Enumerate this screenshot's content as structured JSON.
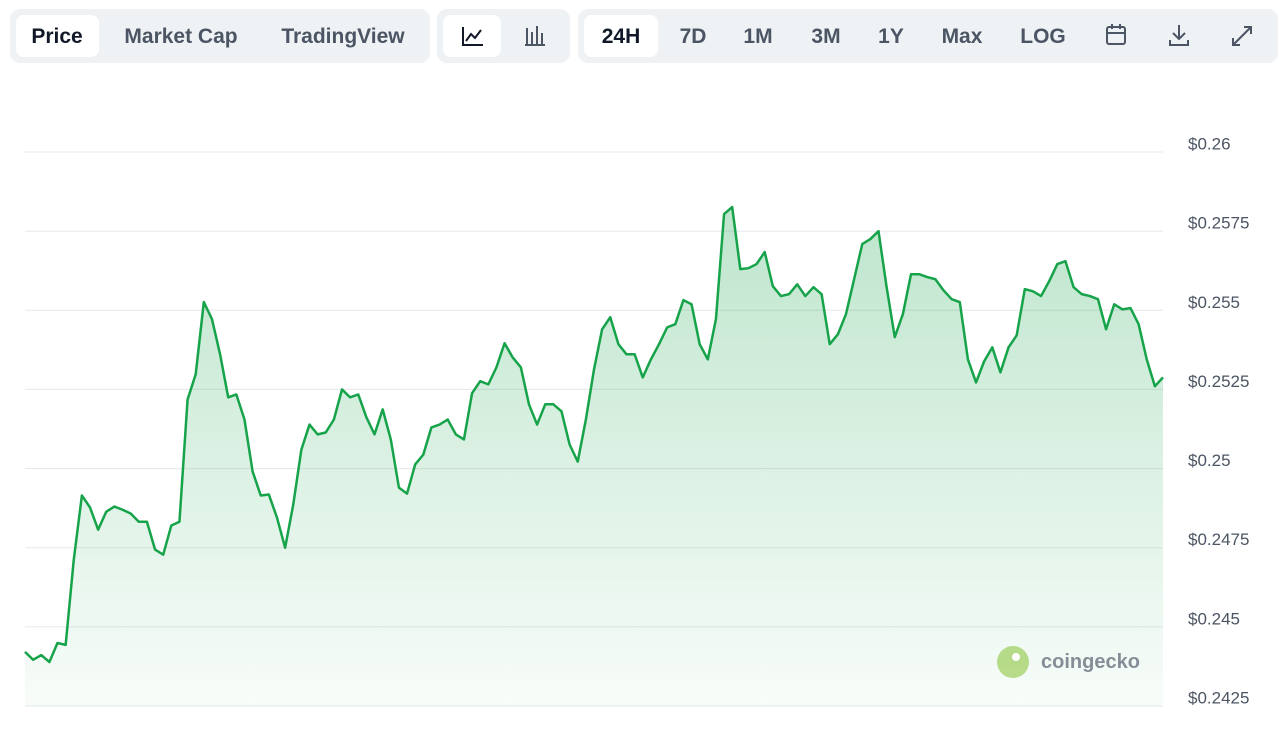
{
  "toolbar": {
    "views": [
      "Price",
      "Market Cap",
      "TradingView"
    ],
    "ranges": [
      "24H",
      "7D",
      "1M",
      "3M",
      "1Y",
      "Max",
      "LOG"
    ]
  },
  "chart_data": {
    "type": "line",
    "series": [
      {
        "color": "#16a34a",
        "values": [
          0.24421,
          0.24396,
          0.24411,
          0.24389,
          0.24449,
          0.24443,
          0.24712,
          0.24915,
          0.24877,
          0.24807,
          0.24864,
          0.2488,
          0.2487,
          0.24858,
          0.24832,
          0.24832,
          0.24744,
          0.24728,
          0.2482,
          0.24832,
          0.25218,
          0.25298,
          0.25526,
          0.25472,
          0.25361,
          0.25225,
          0.25234,
          0.25155,
          0.24991,
          0.24915,
          0.24918,
          0.24845,
          0.2475,
          0.24886,
          0.2506,
          0.25139,
          0.25108,
          0.25114,
          0.25155,
          0.2525,
          0.25225,
          0.25234,
          0.25162,
          0.25108,
          0.25187,
          0.25092,
          0.2494,
          0.24921,
          0.25013,
          0.25044,
          0.2513,
          0.25139,
          0.25155,
          0.25108,
          0.25092,
          0.25238,
          0.25276,
          0.25266,
          0.2532,
          0.25396,
          0.25351,
          0.2532,
          0.25203,
          0.25139,
          0.25203,
          0.25203,
          0.25181,
          0.25076,
          0.25022,
          0.25155,
          0.25313,
          0.2544,
          0.25478,
          0.25393,
          0.25361,
          0.25361,
          0.25288,
          0.25345,
          0.25393,
          0.25446,
          0.25456,
          0.25532,
          0.25519,
          0.25393,
          0.25345,
          0.25472,
          0.25804,
          0.25826,
          0.2563,
          0.25633,
          0.25646,
          0.25684,
          0.25576,
          0.25545,
          0.25551,
          0.25582,
          0.25545,
          0.25573,
          0.25551,
          0.25393,
          0.25424,
          0.25488,
          0.25598,
          0.25709,
          0.25725,
          0.2575,
          0.25573,
          0.25415,
          0.25488,
          0.25614,
          0.25614,
          0.25605,
          0.25598,
          0.25563,
          0.25535,
          0.25526,
          0.25345,
          0.25272,
          0.25339,
          0.25383,
          0.25304,
          0.25383,
          0.25421,
          0.25567,
          0.2556,
          0.25545,
          0.25592,
          0.25646,
          0.25655,
          0.25573,
          0.25551,
          0.25545,
          0.25535,
          0.2544,
          0.25519,
          0.25503,
          0.25507,
          0.25456,
          0.25345,
          0.2526,
          0.25288
        ]
      }
    ],
    "ylim": [
      0.2425,
      0.26
    ],
    "yticks": [
      {
        "value": 0.26,
        "label": "$0.26"
      },
      {
        "value": 0.2575,
        "label": "$0.2575"
      },
      {
        "value": 0.255,
        "label": "$0.255"
      },
      {
        "value": 0.2525,
        "label": "$0.2525"
      },
      {
        "value": 0.25,
        "label": "$0.25"
      },
      {
        "value": 0.2475,
        "label": "$0.2475"
      },
      {
        "value": 0.245,
        "label": "$0.245"
      },
      {
        "value": 0.2425,
        "label": "$0.2425"
      }
    ],
    "grid": true
  },
  "watermark": "coingecko"
}
